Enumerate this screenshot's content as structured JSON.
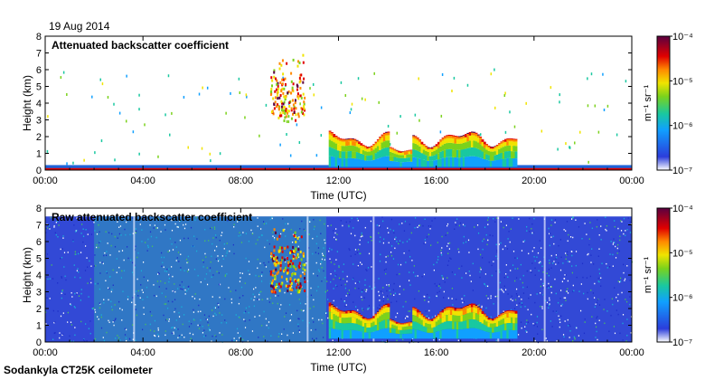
{
  "date": "19 Aug 2014",
  "footer": "Sodankyla CT25K ceilometer",
  "chart_data": [
    {
      "type": "heatmap",
      "title": "Attenuated backscatter coefficient",
      "xlabel": "Time (UTC)",
      "ylabel": "Height (km)",
      "xticks": [
        "00:00",
        "04:00",
        "08:00",
        "12:00",
        "16:00",
        "20:00",
        "00:00"
      ],
      "xlim_hours": [
        0,
        24
      ],
      "ylim_km": [
        0,
        8
      ],
      "yticks": [
        0,
        1,
        2,
        3,
        4,
        5,
        6,
        7,
        8
      ],
      "colorbar": {
        "units": "m⁻¹ sr⁻¹",
        "ticks": [
          "10⁻⁷",
          "10⁻⁶",
          "10⁻⁵",
          "10⁻⁴"
        ],
        "scale": "log",
        "range": [
          1e-07,
          0.0001
        ]
      },
      "features": [
        {
          "kind": "surface-layer",
          "start_h": 0,
          "end_h": 24,
          "top_km": 0.3
        },
        {
          "kind": "elevated-aerosol",
          "start_h": 9.2,
          "end_h": 10.6,
          "base_km": 3.0,
          "top_km": 7.0
        },
        {
          "kind": "low-cloud",
          "start_h": 11.6,
          "end_h": 19.3,
          "base_km": 0.2,
          "top_km": 2.5
        }
      ]
    },
    {
      "type": "heatmap",
      "title": "Raw attenuated backscatter coefficient",
      "xlabel": "Time (UTC)",
      "ylabel": "Height (km)",
      "xticks": [
        "00:00",
        "04:00",
        "08:00",
        "12:00",
        "16:00",
        "20:00",
        "00:00"
      ],
      "xlim_hours": [
        0,
        24
      ],
      "ylim_km": [
        0,
        8
      ],
      "yticks": [
        0,
        1,
        2,
        3,
        4,
        5,
        6,
        7,
        8
      ],
      "colorbar": {
        "units": "m⁻¹ sr⁻¹",
        "ticks": [
          "10⁻⁷",
          "10⁻⁶",
          "10⁻⁵",
          "10⁻⁴"
        ],
        "scale": "log",
        "range": [
          1e-07,
          0.0001
        ]
      },
      "features": [
        {
          "kind": "noise-field",
          "start_h": 0,
          "end_h": 24,
          "top_km": 7.5
        },
        {
          "kind": "elevated-aerosol",
          "start_h": 9.2,
          "end_h": 10.6,
          "base_km": 3.0,
          "top_km": 7.0
        },
        {
          "kind": "low-cloud",
          "start_h": 11.6,
          "end_h": 19.3,
          "base_km": 0.2,
          "top_km": 2.5
        }
      ]
    }
  ]
}
